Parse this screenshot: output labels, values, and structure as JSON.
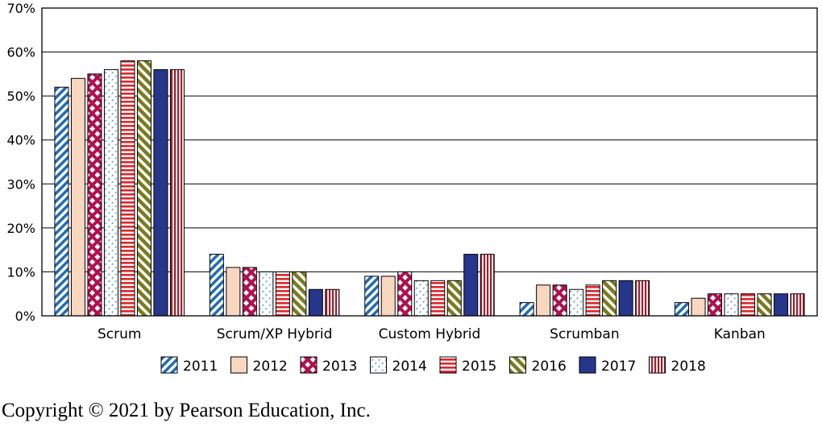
{
  "chart_data": {
    "type": "bar",
    "title": "",
    "xlabel": "",
    "ylabel": "",
    "ylim": [
      0,
      70
    ],
    "yticks": [
      "0%",
      "10%",
      "20%",
      "30%",
      "40%",
      "50%",
      "60%",
      "70%"
    ],
    "grid": "horizontal",
    "legend_position": "bottom",
    "categories": [
      "Scrum",
      "Scrum/XP Hybrid",
      "Custom Hybrid",
      "Scrumban",
      "Kanban"
    ],
    "series": [
      {
        "name": "2011",
        "values": [
          52,
          14,
          9,
          3,
          3
        ],
        "color": "#1f6bb5",
        "pattern": "diag-right"
      },
      {
        "name": "2012",
        "values": [
          54,
          11,
          9,
          7,
          4
        ],
        "color": "#f9d6bf",
        "pattern": "solid"
      },
      {
        "name": "2013",
        "values": [
          55,
          11,
          10,
          7,
          5
        ],
        "color": "#b0104f",
        "pattern": "cross"
      },
      {
        "name": "2014",
        "values": [
          56,
          10,
          8,
          6,
          5
        ],
        "color": "#3a8fc0",
        "pattern": "dots"
      },
      {
        "name": "2015",
        "values": [
          58,
          10,
          8,
          7,
          5
        ],
        "color": "#e0262b",
        "pattern": "horizontal"
      },
      {
        "name": "2016",
        "values": [
          58,
          10,
          8,
          8,
          5
        ],
        "color": "#7b7a1e",
        "pattern": "diag-thick"
      },
      {
        "name": "2017",
        "values": [
          56,
          6,
          14,
          8,
          5
        ],
        "color": "#26368a",
        "pattern": "solid"
      },
      {
        "name": "2018",
        "values": [
          56,
          6,
          14,
          8,
          5
        ],
        "color": "#a11e2c",
        "pattern": "vertical"
      }
    ]
  },
  "footer": {
    "copyright": "Copyright © 2021 by Pearson Education, Inc."
  }
}
